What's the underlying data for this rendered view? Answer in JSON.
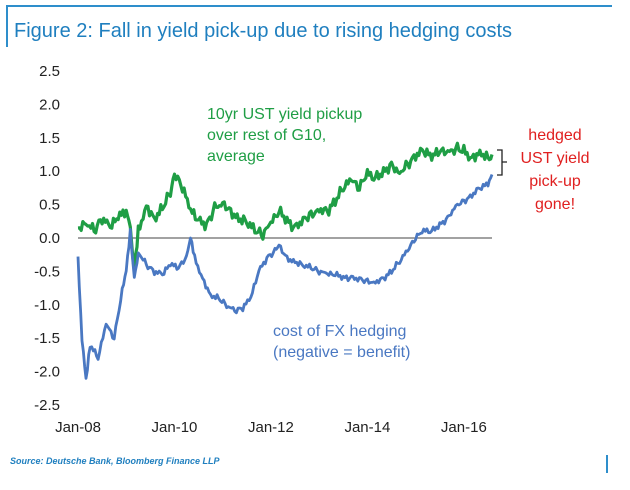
{
  "figure": {
    "title": "Figure 2: Fall in yield pick-up due to rising hedging costs",
    "source": "Source: Deutsche Bank, Bloomberg Finance LLP"
  },
  "colors": {
    "frame": "#2e8ecb",
    "title": "#1f7fbf",
    "green_series": "#1f9e45",
    "blue_series": "#4a78c2",
    "red_annotation": "#e02020"
  },
  "chart_data": {
    "type": "line",
    "x_ticks": [
      "Jan-08",
      "Jan-10",
      "Jan-12",
      "Jan-14",
      "Jan-16"
    ],
    "y_ticks": [
      "2.5",
      "2.0",
      "1.5",
      "1.0",
      "0.5",
      "0.0",
      "-0.5",
      "-1.0",
      "-1.5",
      "-2.0",
      "-2.5"
    ],
    "ylim": [
      -2.5,
      2.5
    ],
    "xlim": [
      "2008-01",
      "2016-08"
    ],
    "grid": false,
    "series": [
      {
        "name": "10yr UST yield pickup over rest of G10, average",
        "label_lines": [
          "10yr UST yield pickup",
          "over rest of G10,",
          "average"
        ],
        "color": "#1f9e45",
        "points": [
          [
            "2008-01",
            0.15
          ],
          [
            "2008-03",
            0.25
          ],
          [
            "2008-05",
            0.1
          ],
          [
            "2008-07",
            0.3
          ],
          [
            "2008-09",
            0.15
          ],
          [
            "2008-11",
            0.3
          ],
          [
            "2009-01",
            0.4
          ],
          [
            "2009-02",
            0.1
          ],
          [
            "2009-03",
            -0.5
          ],
          [
            "2009-04",
            0.1
          ],
          [
            "2009-06",
            0.5
          ],
          [
            "2009-08",
            0.3
          ],
          [
            "2009-10",
            0.45
          ],
          [
            "2009-12",
            0.7
          ],
          [
            "2010-01",
            0.95
          ],
          [
            "2010-03",
            0.75
          ],
          [
            "2010-05",
            0.4
          ],
          [
            "2010-07",
            0.25
          ],
          [
            "2010-09",
            0.2
          ],
          [
            "2010-11",
            0.45
          ],
          [
            "2011-01",
            0.55
          ],
          [
            "2011-03",
            0.4
          ],
          [
            "2011-05",
            0.3
          ],
          [
            "2011-07",
            0.25
          ],
          [
            "2011-09",
            0.1
          ],
          [
            "2011-11",
            0.05
          ],
          [
            "2012-01",
            0.2
          ],
          [
            "2012-03",
            0.4
          ],
          [
            "2012-05",
            0.25
          ],
          [
            "2012-07",
            0.15
          ],
          [
            "2012-09",
            0.3
          ],
          [
            "2012-11",
            0.35
          ],
          [
            "2013-01",
            0.45
          ],
          [
            "2013-03",
            0.4
          ],
          [
            "2013-05",
            0.55
          ],
          [
            "2013-07",
            0.75
          ],
          [
            "2013-09",
            0.85
          ],
          [
            "2013-11",
            0.75
          ],
          [
            "2014-01",
            0.95
          ],
          [
            "2014-03",
            0.9
          ],
          [
            "2014-05",
            1.0
          ],
          [
            "2014-07",
            1.1
          ],
          [
            "2014-09",
            1.0
          ],
          [
            "2014-11",
            1.1
          ],
          [
            "2015-01",
            1.25
          ],
          [
            "2015-03",
            1.3
          ],
          [
            "2015-05",
            1.2
          ],
          [
            "2015-07",
            1.3
          ],
          [
            "2015-09",
            1.25
          ],
          [
            "2015-11",
            1.35
          ],
          [
            "2016-01",
            1.3
          ],
          [
            "2016-03",
            1.2
          ],
          [
            "2016-05",
            1.3
          ],
          [
            "2016-07",
            1.2
          ],
          [
            "2016-08",
            1.25
          ]
        ]
      },
      {
        "name": "cost of FX hedging (negative = benefit)",
        "label_lines": [
          "cost of FX hedging",
          "(negative = benefit)"
        ],
        "color": "#4a78c2",
        "points": [
          [
            "2008-01",
            -0.3
          ],
          [
            "2008-02",
            -1.5
          ],
          [
            "2008-03",
            -2.1
          ],
          [
            "2008-04",
            -1.6
          ],
          [
            "2008-06",
            -1.8
          ],
          [
            "2008-08",
            -1.3
          ],
          [
            "2008-10",
            -1.5
          ],
          [
            "2008-12",
            -0.8
          ],
          [
            "2009-01",
            -0.5
          ],
          [
            "2009-02",
            0.1
          ],
          [
            "2009-03",
            -0.6
          ],
          [
            "2009-04",
            -0.2
          ],
          [
            "2009-06",
            -0.4
          ],
          [
            "2009-08",
            -0.5
          ],
          [
            "2009-10",
            -0.55
          ],
          [
            "2009-12",
            -0.4
          ],
          [
            "2010-02",
            -0.45
          ],
          [
            "2010-04",
            -0.3
          ],
          [
            "2010-05",
            0.0
          ],
          [
            "2010-06",
            -0.3
          ],
          [
            "2010-08",
            -0.6
          ],
          [
            "2010-10",
            -0.85
          ],
          [
            "2010-12",
            -0.9
          ],
          [
            "2011-02",
            -1.0
          ],
          [
            "2011-04",
            -1.1
          ],
          [
            "2011-06",
            -1.05
          ],
          [
            "2011-08",
            -0.9
          ],
          [
            "2011-10",
            -0.5
          ],
          [
            "2011-12",
            -0.3
          ],
          [
            "2012-02",
            -0.2
          ],
          [
            "2012-03",
            -0.1
          ],
          [
            "2012-05",
            -0.3
          ],
          [
            "2012-07",
            -0.35
          ],
          [
            "2012-09",
            -0.4
          ],
          [
            "2012-11",
            -0.45
          ],
          [
            "2013-01",
            -0.5
          ],
          [
            "2013-03",
            -0.55
          ],
          [
            "2013-05",
            -0.55
          ],
          [
            "2013-07",
            -0.6
          ],
          [
            "2013-09",
            -0.6
          ],
          [
            "2013-11",
            -0.6
          ],
          [
            "2014-01",
            -0.65
          ],
          [
            "2014-03",
            -0.65
          ],
          [
            "2014-05",
            -0.6
          ],
          [
            "2014-07",
            -0.5
          ],
          [
            "2014-09",
            -0.35
          ],
          [
            "2014-11",
            -0.2
          ],
          [
            "2015-01",
            0.0
          ],
          [
            "2015-03",
            0.1
          ],
          [
            "2015-05",
            0.1
          ],
          [
            "2015-07",
            0.2
          ],
          [
            "2015-09",
            0.3
          ],
          [
            "2015-11",
            0.5
          ],
          [
            "2016-01",
            0.55
          ],
          [
            "2016-03",
            0.65
          ],
          [
            "2016-05",
            0.75
          ],
          [
            "2016-07",
            0.8
          ],
          [
            "2016-08",
            0.95
          ]
        ]
      }
    ],
    "annotations": [
      {
        "name": "hedged-pickup-gone",
        "lines": [
          "hedged",
          "UST yield",
          "pick-up",
          "gone!"
        ],
        "color": "#e02020"
      }
    ]
  }
}
